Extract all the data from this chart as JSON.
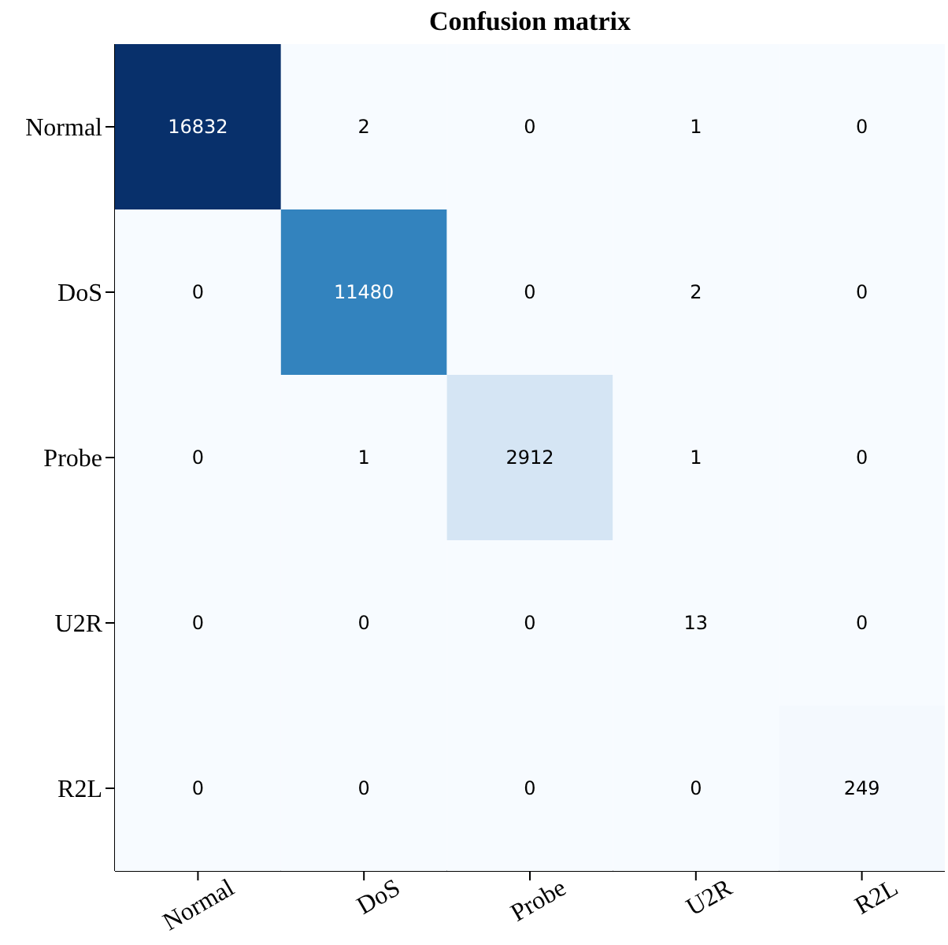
{
  "chart_data": {
    "type": "heatmap",
    "title": "Confusion matrix",
    "categories": [
      "Normal",
      "DoS",
      "Probe",
      "U2R",
      "R2L"
    ],
    "y_categories": [
      "Normal",
      "DoS",
      "Probe",
      "U2R",
      "R2L"
    ],
    "cells": [
      [
        16832,
        2,
        0,
        1,
        0
      ],
      [
        0,
        11480,
        0,
        2,
        0
      ],
      [
        0,
        1,
        2912,
        1,
        0
      ],
      [
        0,
        0,
        0,
        13,
        0
      ],
      [
        0,
        0,
        0,
        0,
        249
      ]
    ],
    "grid": false,
    "data_labels": true
  }
}
